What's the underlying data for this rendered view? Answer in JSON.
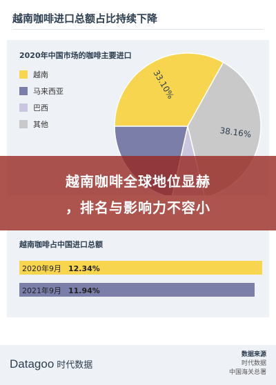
{
  "header": {
    "title": "越南咖啡进口总额占比持续下降"
  },
  "banner": {
    "line1": "越南咖啡全球地位显赫",
    "line2": "，排名与影响力不容小"
  },
  "footer": {
    "brand": "Datagoo",
    "brand_cn": "时代数据",
    "source_title": "数据来源",
    "source_lines": [
      "时代数据",
      "中国海关总署"
    ]
  },
  "chart_data": [
    {
      "type": "pie",
      "title": "2020年中国市场的咖啡主要进口",
      "categories": [
        "越南",
        "马来西亚",
        "巴西",
        "其他"
      ],
      "values": [
        33.1,
        21.5,
        7.24,
        38.16
      ],
      "value_labels": [
        "33.10%",
        "",
        "",
        "38.16%"
      ],
      "colors": [
        "#f7d54e",
        "#7a7ea8",
        "#cbc6df",
        "#c9c9c9"
      ],
      "legend_position": "left"
    },
    {
      "type": "bar",
      "orientation": "horizontal",
      "title": "越南咖啡占中国进口总额",
      "categories": [
        "2020年9月",
        "2021年9月"
      ],
      "values": [
        12.34,
        11.94
      ],
      "value_labels": [
        "12.34%",
        "11.94%"
      ],
      "colors": [
        "#f7d54e",
        "#7a7ea8"
      ],
      "xlim": [
        0,
        12.34
      ]
    }
  ]
}
